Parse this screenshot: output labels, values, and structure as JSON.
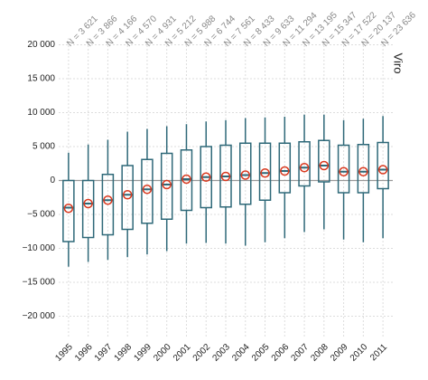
{
  "chart_data": {
    "type": "box",
    "panel_label": "Viro",
    "categories": [
      "1995",
      "1996",
      "1997",
      "1998",
      "1999",
      "2000",
      "2001",
      "2002",
      "2003",
      "2004",
      "2005",
      "2006",
      "2007",
      "2008",
      "2009",
      "2010",
      "2011"
    ],
    "annotations": [
      "N = 3 621",
      "N = 3 866",
      "N = 4 166",
      "N = 4 570",
      "N = 4 931",
      "N = 5 212",
      "N = 5 988",
      "N = 6 744",
      "N = 7 561",
      "N = 8 433",
      "N = 9 633",
      "N = 11 294",
      "N = 13 195",
      "N = 15 347",
      "N = 17 522",
      "N = 20 137",
      "N = 23 636"
    ],
    "whisker_high": [
      4100,
      5300,
      6000,
      7200,
      7600,
      8000,
      8300,
      8700,
      8900,
      9200,
      9300,
      9400,
      9700,
      9700,
      8900,
      9100,
      9500
    ],
    "q3": [
      0,
      0,
      900,
      2200,
      3100,
      4000,
      4500,
      5000,
      5200,
      5500,
      5500,
      5500,
      5700,
      5900,
      5200,
      5300,
      5600
    ],
    "median": [
      -4000,
      -3400,
      -2900,
      -2100,
      -1300,
      -600,
      200,
      500,
      600,
      800,
      1100,
      1400,
      1900,
      2200,
      1300,
      1300,
      1600
    ],
    "q1": [
      -9000,
      -8400,
      -8000,
      -7200,
      -6300,
      -5700,
      -4400,
      -4000,
      -3900,
      -3500,
      -2900,
      -1800,
      -800,
      -200,
      -1800,
      -1800,
      -1200
    ],
    "whisker_low": [
      -12700,
      -12000,
      -11700,
      -11300,
      -10900,
      -10400,
      -9300,
      -9200,
      -9300,
      -9600,
      -9100,
      -8500,
      -7600,
      -7200,
      -8700,
      -9100,
      -8500
    ],
    "mean": [
      -4100,
      -3400,
      -2900,
      -2100,
      -1300,
      -600,
      200,
      500,
      600,
      800,
      1100,
      1400,
      1900,
      2200,
      1300,
      1300,
      1600
    ],
    "color": "#2e6878",
    "mean_color": "#d9381e",
    "reference_line": 0,
    "ylim": [
      -23000,
      21000
    ],
    "yticks": [
      {
        "value": -20000,
        "label": "−20 000"
      },
      {
        "value": -15000,
        "label": "−15 000"
      },
      {
        "value": -10000,
        "label": "−10 000"
      },
      {
        "value": -5000,
        "label": "−5 000"
      },
      0,
      {
        "value": 5000,
        "label": "5 000"
      },
      {
        "value": 10000,
        "label": "10 000"
      },
      {
        "value": 15000,
        "label": "15 000"
      },
      {
        "value": 20000,
        "label": "20 000"
      }
    ],
    "grid": true
  }
}
